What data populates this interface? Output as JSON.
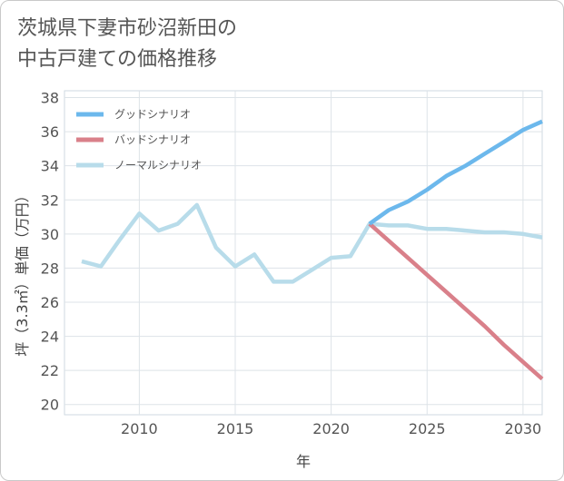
{
  "title": {
    "line1": "茨城県下妻市砂沼新田の",
    "line2": "中古戸建ての価格推移"
  },
  "chart_data": {
    "type": "line",
    "xlabel": "年",
    "ylabel": "坪（3.3㎡）単価（万円）",
    "xlim": [
      2006.1,
      2031
    ],
    "ylim": [
      19.4,
      38.4
    ],
    "xticks": [
      2010,
      2015,
      2020,
      2025,
      2030
    ],
    "yticks": [
      20,
      22,
      24,
      26,
      28,
      30,
      32,
      34,
      36,
      38
    ],
    "grid": true,
    "legend_position": "top-left",
    "series": [
      {
        "name": "グッドシナリオ",
        "color": "#6cb8ec",
        "x": [
          2022,
          2023,
          2024,
          2025,
          2026,
          2027,
          2028,
          2029,
          2030,
          2031
        ],
        "y": [
          30.6,
          31.4,
          31.9,
          32.6,
          33.4,
          34.0,
          34.7,
          35.4,
          36.1,
          36.6
        ]
      },
      {
        "name": "バッドシナリオ",
        "color": "#d9808a",
        "x": [
          2022,
          2023,
          2024,
          2025,
          2026,
          2027,
          2028,
          2029,
          2030,
          2031
        ],
        "y": [
          30.6,
          29.6,
          28.6,
          27.6,
          26.6,
          25.6,
          24.6,
          23.5,
          22.5,
          21.5
        ]
      },
      {
        "name": "ノーマルシナリオ",
        "color": "#b8dcea",
        "x": [
          2007,
          2008,
          2009,
          2010,
          2011,
          2012,
          2013,
          2014,
          2015,
          2016,
          2017,
          2018,
          2019,
          2020,
          2021,
          2022,
          2023,
          2024,
          2025,
          2026,
          2027,
          2028,
          2029,
          2030,
          2031
        ],
        "y": [
          28.4,
          28.1,
          29.7,
          31.2,
          30.2,
          30.6,
          31.7,
          29.2,
          28.1,
          28.8,
          27.2,
          27.2,
          27.9,
          28.6,
          28.7,
          30.6,
          30.5,
          30.5,
          30.3,
          30.3,
          30.2,
          30.1,
          30.1,
          30.0,
          29.8
        ]
      }
    ]
  }
}
